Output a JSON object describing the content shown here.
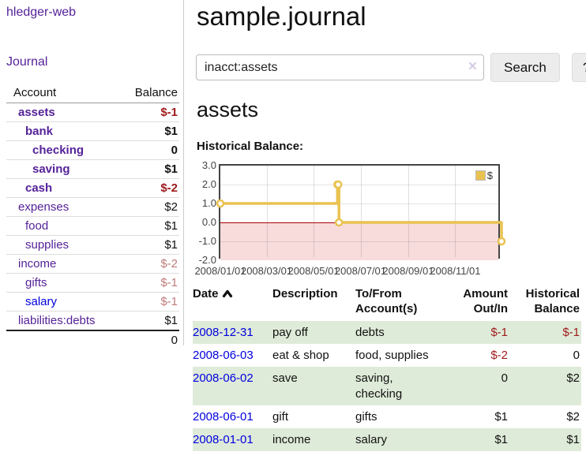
{
  "theme": {
    "link_purple": "#552299",
    "link_blue": "#0000dd",
    "negative_red": "#9e1a1a",
    "negative_red_light": "#bf7b7b",
    "row_stripe_green": "#dfebd9",
    "series_yellow": "#e9c250",
    "chart_negative_fill": "#f8dbdb",
    "chart_zero_line": "#aa0000"
  },
  "sidebar": {
    "app_title": "hledger-web",
    "journal_label": "Journal",
    "accounts_header": {
      "account": "Account",
      "balance": "Balance"
    },
    "accounts": [
      {
        "name": "assets",
        "balance": "$-1",
        "indent": 0,
        "bold": true
      },
      {
        "name": "bank",
        "balance": "$1",
        "indent": 1,
        "bold": true
      },
      {
        "name": "checking",
        "balance": "0",
        "indent": 2,
        "bold": true
      },
      {
        "name": "saving",
        "balance": "$1",
        "indent": 2,
        "bold": true
      },
      {
        "name": "cash",
        "balance": "$-2",
        "indent": 1,
        "bold": true
      },
      {
        "name": "expenses",
        "balance": "$2",
        "indent": 0
      },
      {
        "name": "food",
        "balance": "$1",
        "indent": 1
      },
      {
        "name": "supplies",
        "balance": "$1",
        "indent": 1
      },
      {
        "name": "income",
        "balance": "$-2",
        "indent": 0
      },
      {
        "name": "gifts",
        "balance": "$-1",
        "indent": 1
      },
      {
        "name": "salary",
        "balance": "$-1",
        "indent": 1,
        "unvisited": true
      },
      {
        "name": "liabilities:debts",
        "balance": "$1",
        "indent": 0
      }
    ],
    "total": "0"
  },
  "main": {
    "title": "sample.journal",
    "search": {
      "value": "inacct:assets",
      "clear_icon": "×",
      "button_label": "Search",
      "help_label": "?"
    },
    "account_heading": "assets"
  },
  "chart_data": {
    "type": "line",
    "title": "Historical Balance:",
    "step": true,
    "xlim": [
      "2008-01-01",
      "2008-12-31"
    ],
    "ylim": [
      -2,
      3
    ],
    "x_ticks": [
      "2008/01/01",
      "2008/03/01",
      "2008/05/01",
      "2008/07/01",
      "2008/09/01",
      "2008/11/01"
    ],
    "y_tick_labels": [
      "3.0",
      "2.0",
      "1.0",
      "0.0",
      "-1.0",
      "-2.0"
    ],
    "legend_position": "top-right",
    "series": [
      {
        "name": "$",
        "color": "#e9c250",
        "points": [
          [
            "2008-01-01",
            1
          ],
          [
            "2008-06-01",
            2
          ],
          [
            "2008-06-02",
            2
          ],
          [
            "2008-06-03",
            0
          ],
          [
            "2008-12-31",
            -1
          ]
        ]
      }
    ]
  },
  "register": {
    "headers": {
      "date": "Date",
      "description": "Description",
      "accounts": "To/From Account(s)",
      "amount": "Amount Out/In",
      "balance": "Historical Balance"
    },
    "rows": [
      {
        "date": "2008-12-31",
        "description": "pay off",
        "accounts": "debts",
        "amount": "$-1",
        "balance": "$-1"
      },
      {
        "date": "2008-06-03",
        "description": "eat & shop",
        "accounts": "food, supplies",
        "amount": "$-2",
        "balance": "0"
      },
      {
        "date": "2008-06-02",
        "description": "save",
        "accounts": "saving, checking",
        "amount": "0",
        "balance": "$2"
      },
      {
        "date": "2008-06-01",
        "description": "gift",
        "accounts": "gifts",
        "amount": "$1",
        "balance": "$2"
      },
      {
        "date": "2008-01-01",
        "description": "income",
        "accounts": "salary",
        "amount": "$1",
        "balance": "$1"
      }
    ]
  }
}
